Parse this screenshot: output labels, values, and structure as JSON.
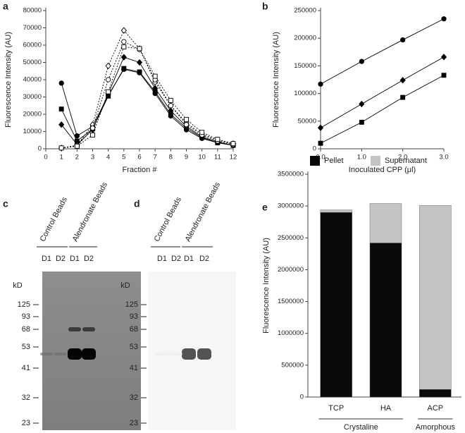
{
  "chart_data": [
    {
      "type": "line",
      "label": "a",
      "x": [
        1,
        2,
        3,
        4,
        5,
        6,
        7,
        8,
        9,
        10,
        11,
        12
      ],
      "xlim": [
        0,
        12
      ],
      "xticks": [
        0,
        1,
        2,
        3,
        4,
        5,
        6,
        7,
        8,
        9,
        10,
        11,
        12
      ],
      "ylim": [
        0,
        80000
      ],
      "yticks": [
        0,
        10000,
        20000,
        30000,
        40000,
        50000,
        60000,
        70000,
        80000
      ],
      "xlabel": "Fraction #",
      "ylabel": "Fluorescence Intensity (AU)",
      "series": [
        {
          "marker": "circle",
          "fill": "filled",
          "color": "#000000",
          "dashed": false,
          "values": [
            38000,
            7500,
            13000,
            31000,
            46000,
            44000,
            32000,
            19000,
            11000,
            6000,
            3500,
            2000
          ]
        },
        {
          "marker": "square",
          "fill": "filled",
          "color": "#000000",
          "dashed": false,
          "values": [
            23000,
            4500,
            11500,
            30500,
            46500,
            44500,
            33000,
            20000,
            12000,
            6500,
            3500,
            2000
          ]
        },
        {
          "marker": "diamond",
          "fill": "filled",
          "color": "#000000",
          "dashed": false,
          "values": [
            14000,
            2500,
            11000,
            32000,
            53000,
            50000,
            35000,
            22000,
            13000,
            7000,
            4000,
            2000
          ]
        },
        {
          "marker": "diamond",
          "fill": "open",
          "color": "#000000",
          "dashed": true,
          "values": [
            500,
            2000,
            14000,
            48000,
            68500,
            58000,
            38500,
            25000,
            15000,
            8500,
            5000,
            3000
          ]
        },
        {
          "marker": "circle",
          "fill": "open",
          "color": "#000000",
          "dashed": true,
          "values": [
            500,
            1500,
            12000,
            40000,
            62000,
            57500,
            40000,
            25000,
            14000,
            8000,
            4500,
            2500
          ]
        },
        {
          "marker": "square",
          "fill": "open",
          "color": "#000000",
          "dashed": true,
          "values": [
            500,
            1500,
            8000,
            33000,
            59000,
            58000,
            42000,
            28000,
            17000,
            9500,
            5500,
            3000
          ]
        }
      ]
    },
    {
      "type": "line",
      "label": "b",
      "x": [
        0,
        1,
        2,
        3
      ],
      "xlim": [
        0,
        3
      ],
      "xticks": [
        {
          "value": 0,
          "label": "0.0"
        },
        {
          "value": 1,
          "label": "1.0"
        },
        {
          "value": 2,
          "label": "2.0"
        },
        {
          "value": 3,
          "label": "3.0"
        }
      ],
      "ylim": [
        0,
        250000
      ],
      "yticks": [
        0,
        50000,
        100000,
        150000,
        200000,
        250000
      ],
      "xlabel": "Inoculated CPP (μl)",
      "ylabel": "Fluorescence Intensity (AU)",
      "series": [
        {
          "marker": "circle",
          "fill": "filled",
          "color": "#000000",
          "dashed": false,
          "values": [
            117000,
            158000,
            197000,
            235000
          ]
        },
        {
          "marker": "diamond",
          "fill": "filled",
          "color": "#000000",
          "dashed": false,
          "values": [
            38000,
            81000,
            124000,
            166000
          ]
        },
        {
          "marker": "square",
          "fill": "filled",
          "color": "#000000",
          "dashed": false,
          "values": [
            10000,
            48000,
            93000,
            133000
          ]
        }
      ]
    },
    {
      "type": "stacked_bar",
      "label": "e",
      "categories": [
        "TCP",
        "HA",
        "ACP"
      ],
      "groups": [
        {
          "label": "Crystaline",
          "categories": [
            "TCP",
            "HA"
          ]
        },
        {
          "label": "Amorphous",
          "categories": [
            "ACP"
          ]
        }
      ],
      "ylim": [
        0,
        3500000
      ],
      "yticks": [
        0,
        500000,
        1000000,
        1500000,
        2000000,
        2500000,
        3000000,
        3500000
      ],
      "ylabel": "Fluorescence Intensity (AU)",
      "legend": "top",
      "series": [
        {
          "name": "Pellet",
          "color": "#0a0a0a",
          "values": [
            2900000,
            2420000,
            120000
          ]
        },
        {
          "name": "Supernatant",
          "color": "#c4c4c4",
          "values": [
            40000,
            620000,
            2890000
          ]
        }
      ]
    }
  ],
  "gels": [
    {
      "label": "c",
      "groups": [
        "Control Beads",
        "Alendronate Beads"
      ],
      "lanes": [
        "D1",
        "D2",
        "D1",
        "D2"
      ],
      "unit": "kD",
      "markers": [
        125,
        93,
        68,
        53,
        41,
        32,
        23
      ]
    },
    {
      "label": "d",
      "groups": [
        "Control Beads",
        "Alendronate Beads"
      ],
      "lanes": [
        "D1",
        "D2",
        "D1",
        "D2"
      ],
      "unit": "kD",
      "markers": [
        125,
        93,
        68,
        53,
        41,
        32,
        23
      ]
    }
  ]
}
